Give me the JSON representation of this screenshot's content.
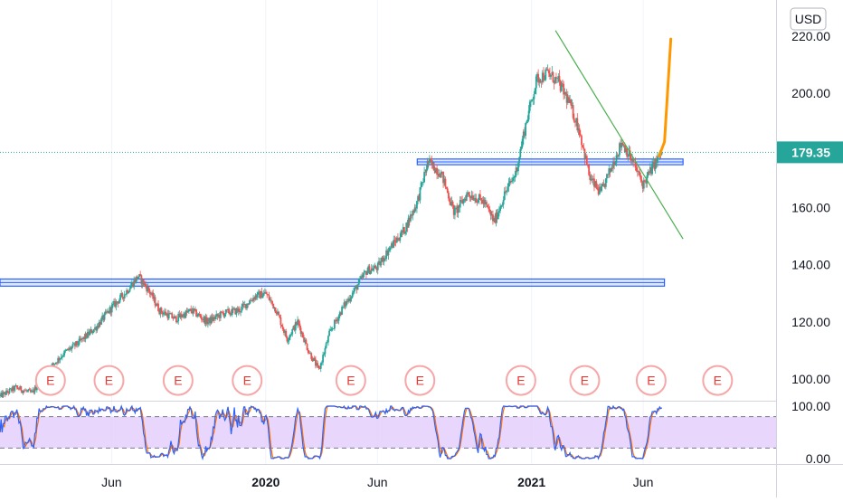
{
  "chart_data": {
    "type": "candlestick",
    "currency": "USD",
    "price_axis": {
      "min": 92,
      "max": 225,
      "ticks": [
        {
          "value": 100,
          "label": "100.00"
        },
        {
          "value": 120,
          "label": "120.00"
        },
        {
          "value": 140,
          "label": "140.00"
        },
        {
          "value": 160,
          "label": "160.00"
        },
        {
          "value": 180,
          "label": "180.00"
        },
        {
          "value": 200,
          "label": "200.00"
        },
        {
          "value": 220,
          "label": "220.00"
        }
      ]
    },
    "time_axis": {
      "start": "2019-01",
      "end": "2021-10",
      "labels": [
        {
          "t": 2019.42,
          "label": "Jun",
          "bold": false
        },
        {
          "t": 2020.0,
          "label": "2020",
          "bold": true
        },
        {
          "t": 2020.42,
          "label": "Jun",
          "bold": false
        },
        {
          "t": 2021.0,
          "label": "2021",
          "bold": true
        },
        {
          "t": 2021.42,
          "label": "Jun",
          "bold": false
        }
      ]
    },
    "last_price": {
      "value": 179.35,
      "label": "179.35",
      "color": "#26a69a"
    },
    "price_path": [
      [
        2019.0,
        94
      ],
      [
        2019.06,
        97
      ],
      [
        2019.12,
        95
      ],
      [
        2019.18,
        103
      ],
      [
        2019.24,
        109
      ],
      [
        2019.3,
        113
      ],
      [
        2019.36,
        118
      ],
      [
        2019.42,
        125
      ],
      [
        2019.47,
        130
      ],
      [
        2019.52,
        136
      ],
      [
        2019.56,
        131
      ],
      [
        2019.6,
        124
      ],
      [
        2019.66,
        121
      ],
      [
        2019.72,
        124
      ],
      [
        2019.78,
        120
      ],
      [
        2019.84,
        123
      ],
      [
        2019.9,
        124
      ],
      [
        2019.96,
        129
      ],
      [
        2020.0,
        130
      ],
      [
        2020.04,
        124
      ],
      [
        2020.08,
        114
      ],
      [
        2020.12,
        120
      ],
      [
        2020.16,
        110
      ],
      [
        2020.2,
        103
      ],
      [
        2020.24,
        116
      ],
      [
        2020.29,
        125
      ],
      [
        2020.34,
        132
      ],
      [
        2020.38,
        138
      ],
      [
        2020.42,
        139
      ],
      [
        2020.46,
        145
      ],
      [
        2020.52,
        152
      ],
      [
        2020.57,
        162
      ],
      [
        2020.61,
        176
      ],
      [
        2020.66,
        172
      ],
      [
        2020.71,
        158
      ],
      [
        2020.76,
        165
      ],
      [
        2020.82,
        162
      ],
      [
        2020.86,
        155
      ],
      [
        2020.9,
        165
      ],
      [
        2020.94,
        172
      ],
      [
        2020.98,
        190
      ],
      [
        2021.02,
        205
      ],
      [
        2021.06,
        207
      ],
      [
        2021.1,
        204
      ],
      [
        2021.14,
        197
      ],
      [
        2021.18,
        187
      ],
      [
        2021.22,
        170
      ],
      [
        2021.26,
        165
      ],
      [
        2021.3,
        174
      ],
      [
        2021.34,
        183
      ],
      [
        2021.38,
        176
      ],
      [
        2021.42,
        168
      ],
      [
        2021.46,
        175
      ],
      [
        2021.49,
        179
      ]
    ],
    "horizontal_zones": [
      {
        "low": 132.5,
        "high": 135,
        "t_start": 2019.0,
        "t_end": 2021.5,
        "color": "#2962ff"
      },
      {
        "low": 175,
        "high": 177,
        "t_start": 2020.57,
        "t_end": 2021.57,
        "color": "#2962ff"
      }
    ],
    "trendline": {
      "t1": 2021.09,
      "p1": 222,
      "t2": 2021.57,
      "p2": 149,
      "color": "#4caf50"
    },
    "projection_arrow": {
      "t": 2021.49,
      "p_start": 178,
      "p_end": 219,
      "color": "#ff9800"
    },
    "earnings_markers": {
      "label": "E",
      "price_level": 99.5,
      "times": [
        2019.19,
        2019.41,
        2019.67,
        2019.93,
        2020.32,
        2020.58,
        2020.96,
        2021.2,
        2021.45,
        2021.7
      ]
    },
    "stochastic": {
      "range": [
        0,
        100
      ],
      "upper_band": 80,
      "lower_band": 20,
      "ticks": [
        {
          "value": 100,
          "label": "100.00"
        },
        {
          "value": 0,
          "label": "0.00"
        }
      ],
      "k_color": "#2962ff",
      "d_color": "#ff6d00",
      "band_fill": "#e1c8fb"
    }
  }
}
